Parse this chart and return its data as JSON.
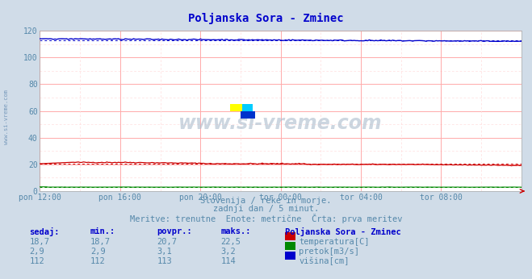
{
  "title": "Poljanska Sora - Zminec",
  "title_color": "#0000cc",
  "bg_color": "#d0dce8",
  "plot_bg_color": "#ffffff",
  "grid_color_major": "#ffaaaa",
  "grid_color_minor": "#ffdddd",
  "tick_color": "#5588aa",
  "x_labels": [
    "pon 12:00",
    "pon 16:00",
    "pon 20:00",
    "tor 00:00",
    "tor 04:00",
    "tor 08:00"
  ],
  "x_ticks_norm": [
    0.0,
    0.1667,
    0.3333,
    0.5,
    0.6667,
    0.8333
  ],
  "y_ticks": [
    0,
    20,
    40,
    60,
    80,
    100,
    120
  ],
  "temp_color": "#cc0000",
  "pretok_color": "#008800",
  "visina_color": "#0000cc",
  "temp_avg": 20.7,
  "pretok_avg": 3.1,
  "visina_avg": 113.0,
  "temp_min": 18.7,
  "temp_max": 22.5,
  "pretok_min": 2.9,
  "pretok_max": 3.2,
  "visina_min": 112,
  "visina_max": 114,
  "subtitle1": "Slovenija / reke in morje.",
  "subtitle2": "zadnji dan / 5 minut.",
  "subtitle3": "Meritve: trenutne  Enote: metrične  Črta: prva meritev",
  "watermark_text": "www.si-vreme.com",
  "watermark_color": "#aabbcc",
  "side_text": "www.si-vreme.com",
  "legend_title": "Poljanska Sora - Zminec",
  "col_headers": [
    "sedaj:",
    "min.:",
    "povpr.:",
    "maks.:"
  ],
  "rows": [
    [
      "18,7",
      "18,7",
      "20,7",
      "22,5",
      "temperatura[C]",
      "#cc0000"
    ],
    [
      "2,9",
      "2,9",
      "3,1",
      "3,2",
      "pretok[m3/s]",
      "#008800"
    ],
    [
      "112",
      "112",
      "113",
      "114",
      "višina[cm]",
      "#0000cc"
    ]
  ],
  "n_points": 289,
  "fig_width": 6.59,
  "fig_height": 3.46,
  "dpi": 100
}
